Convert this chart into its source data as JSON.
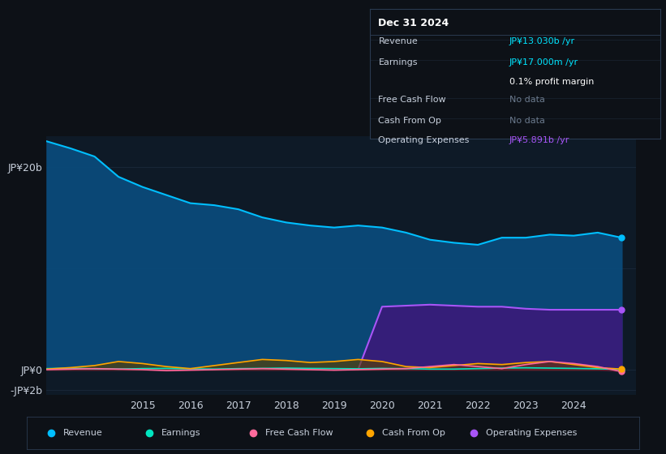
{
  "bg_color": "#0d1117",
  "chart_bg": "#0e1a27",
  "grid_color": "#1e2d40",
  "ylim": [
    -2.5,
    23
  ],
  "yticks": [
    20,
    0,
    -2
  ],
  "ytick_labels": [
    "JP¥20b",
    "JP¥0",
    "-JP¥2b"
  ],
  "xtick_years": [
    2015,
    2016,
    2017,
    2018,
    2019,
    2020,
    2021,
    2022,
    2023,
    2024
  ],
  "revenue_color": "#00bfff",
  "revenue_fill": "#0a4a7a",
  "earnings_color": "#00e5c0",
  "fcf_color": "#ff6b9d",
  "cashop_color": "#ffa500",
  "opex_color": "#a855f7",
  "opex_fill": "#3a1a7a",
  "text_color": "#c8d0dc",
  "cyan_color": "#00e5ff",
  "purple_color": "#a855f7",
  "infobox_bg": "#0d1117",
  "infobox_border": "#2a3a50",
  "title_text": "Dec 31 2024",
  "revenue_label": "JP¥13.030b /yr",
  "earnings_label": "JP¥17.000m /yr",
  "margin_label": "0.1% profit margin",
  "opex_label": "JP¥5.891b /yr",
  "revenue": [
    22.5,
    21.8,
    21.0,
    19.0,
    18.0,
    17.2,
    16.4,
    16.2,
    15.8,
    15.0,
    14.5,
    14.2,
    14.0,
    14.2,
    14.0,
    13.5,
    12.8,
    12.5,
    12.3,
    13.0,
    13.0,
    13.3,
    13.2,
    13.5,
    13.0
  ],
  "earnings": [
    0.1,
    0.15,
    0.08,
    0.05,
    0.1,
    0.12,
    0.08,
    0.05,
    0.1,
    0.12,
    0.15,
    0.12,
    0.1,
    0.08,
    0.12,
    0.1,
    0.05,
    0.05,
    0.1,
    0.15,
    0.18,
    0.15,
    0.12,
    0.08,
    0.017
  ],
  "fcf": [
    0.0,
    0.05,
    0.1,
    0.05,
    0.0,
    -0.1,
    -0.05,
    0.0,
    0.05,
    0.1,
    0.05,
    0.0,
    -0.05,
    0.0,
    0.05,
    0.1,
    0.3,
    0.5,
    0.3,
    0.1,
    0.5,
    0.8,
    0.6,
    0.3,
    -0.2
  ],
  "cashop": [
    0.05,
    0.2,
    0.4,
    0.8,
    0.6,
    0.3,
    0.1,
    0.4,
    0.7,
    1.0,
    0.9,
    0.7,
    0.8,
    1.0,
    0.8,
    0.3,
    0.2,
    0.4,
    0.6,
    0.5,
    0.7,
    0.8,
    0.5,
    0.2,
    0.05
  ],
  "opex": [
    0.0,
    0.0,
    0.0,
    0.0,
    0.0,
    0.0,
    0.0,
    0.0,
    0.0,
    0.0,
    0.0,
    0.0,
    0.0,
    0.0,
    6.2,
    6.3,
    6.4,
    6.3,
    6.2,
    6.2,
    6.0,
    5.9,
    5.9,
    5.9,
    5.9
  ],
  "years": [
    2013.0,
    2013.5,
    2014.0,
    2014.5,
    2015.0,
    2015.5,
    2016.0,
    2016.5,
    2017.0,
    2017.5,
    2018.0,
    2018.5,
    2019.0,
    2019.5,
    2020.0,
    2020.5,
    2021.0,
    2021.5,
    2022.0,
    2022.5,
    2023.0,
    2023.5,
    2024.0,
    2024.5,
    2025.0
  ],
  "legend_items": [
    {
      "label": "Revenue",
      "color": "#00bfff"
    },
    {
      "label": "Earnings",
      "color": "#00e5c0"
    },
    {
      "label": "Free Cash Flow",
      "color": "#ff6b9d"
    },
    {
      "label": "Cash From Op",
      "color": "#ffa500"
    },
    {
      "label": "Operating Expenses",
      "color": "#a855f7"
    }
  ]
}
